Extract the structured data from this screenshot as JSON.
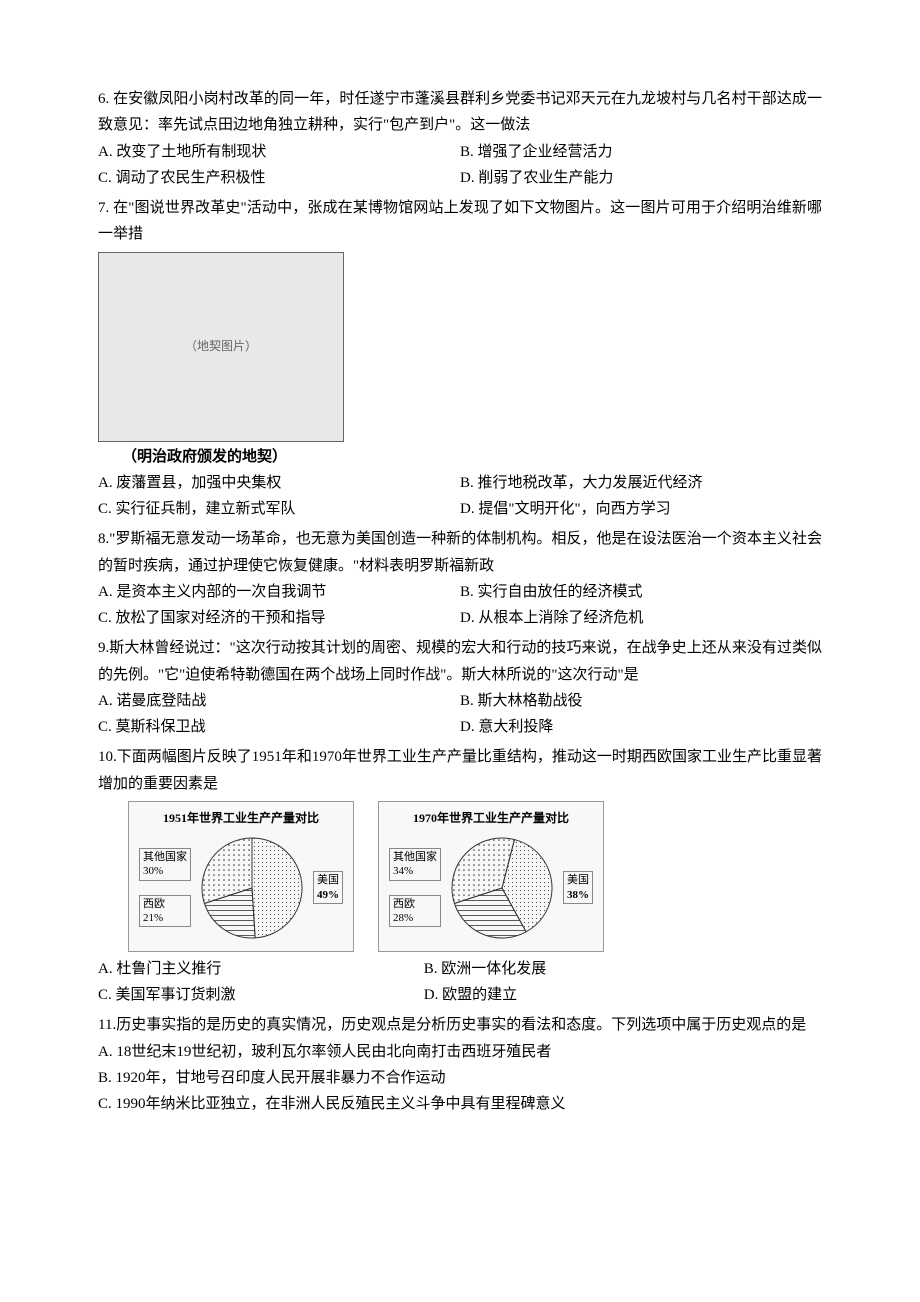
{
  "q6": {
    "text": "6. 在安徽凤阳小岗村改革的同一年，时任遂宁市蓬溪县群利乡党委书记邓天元在九龙坡村与几名村干部达成一致意见：率先试点田边地角独立耕种，实行\"包产到户\"。这一做法",
    "optA": "A. 改变了土地所有制现状",
    "optB": "B. 增强了企业经营活力",
    "optC": "C. 调动了农民生产积极性",
    "optD": "D. 削弱了农业生产能力"
  },
  "q7": {
    "text": "7. 在\"图说世界改革史\"活动中，张成在某博物馆网站上发现了如下文物图片。这一图片可用于介绍明治维新哪一举措",
    "img_alt": "（地契图片）",
    "caption": "（明治政府颁发的地契）",
    "optA": "A. 废藩置县，加强中央集权",
    "optB": "B. 推行地税改革，大力发展近代经济",
    "optC": "C. 实行征兵制，建立新式军队",
    "optD": "D. 提倡\"文明开化\"，向西方学习"
  },
  "q8": {
    "text": "8.\"罗斯福无意发动一场革命，也无意为美国创造一种新的体制机构。相反，他是在设法医治一个资本主义社会的暂时疾病，通过护理使它恢复健康。\"材料表明罗斯福新政",
    "optA": "A. 是资本主义内部的一次自我调节",
    "optB": "B. 实行自由放任的经济模式",
    "optC": "C. 放松了国家对经济的干预和指导",
    "optD": "D. 从根本上消除了经济危机"
  },
  "q9": {
    "text": "9.斯大林曾经说过：\"这次行动按其计划的周密、规模的宏大和行动的技巧来说，在战争史上还从来没有过类似的先例。\"它\"迫使希特勒德国在两个战场上同时作战\"。斯大林所说的\"这次行动\"是",
    "optA": "A. 诺曼底登陆战",
    "optB": "B. 斯大林格勒战役",
    "optC": "C. 莫斯科保卫战",
    "optD": "D. 意大利投降"
  },
  "q10": {
    "text": "10.下面两幅图片反映了1951年和1970年世界工业生产产量比重结构，推动这一时期西欧国家工业生产比重显著增加的重要因素是",
    "chart1": {
      "title": "1951年世界工业生产产量对比",
      "segments": [
        {
          "label": "其他国家",
          "value": 30,
          "color": "#ffffff",
          "pattern": "dots"
        },
        {
          "label": "美国",
          "value": 49,
          "color": "#ffffff",
          "pattern": "dots2"
        },
        {
          "label": "西欧",
          "value": 21,
          "color": "#ffffff",
          "pattern": "lines"
        }
      ],
      "colors": {
        "stroke": "#333333",
        "bg": "#f8f8f8",
        "title_fontsize": 12,
        "label_fontsize": 11
      }
    },
    "chart2": {
      "title": "1970年世界工业生产产量对比",
      "segments": [
        {
          "label": "其他国家",
          "value": 34,
          "color": "#ffffff",
          "pattern": "dots"
        },
        {
          "label": "美国",
          "value": 38,
          "color": "#ffffff",
          "pattern": "dots2"
        },
        {
          "label": "西欧",
          "value": 28,
          "color": "#ffffff",
          "pattern": "lines"
        }
      ],
      "colors": {
        "stroke": "#333333",
        "bg": "#f8f8f8",
        "title_fontsize": 12,
        "label_fontsize": 11
      }
    },
    "optA": "A. 杜鲁门主义推行",
    "optB": "B. 欧洲一体化发展",
    "optC": "C. 美国军事订货刺激",
    "optD": "D. 欧盟的建立"
  },
  "q11": {
    "text": "11.历史事实指的是历史的真实情况，历史观点是分析历史事实的看法和态度。下列选项中属于历史观点的是",
    "optA": "A. 18世纪末19世纪初，玻利瓦尔率领人民由北向南打击西班牙殖民者",
    "optB": "B. 1920年，甘地号召印度人民开展非暴力不合作运动",
    "optC": "C. 1990年纳米比亚独立，在非洲人民反殖民主义斗争中具有里程碑意义"
  }
}
